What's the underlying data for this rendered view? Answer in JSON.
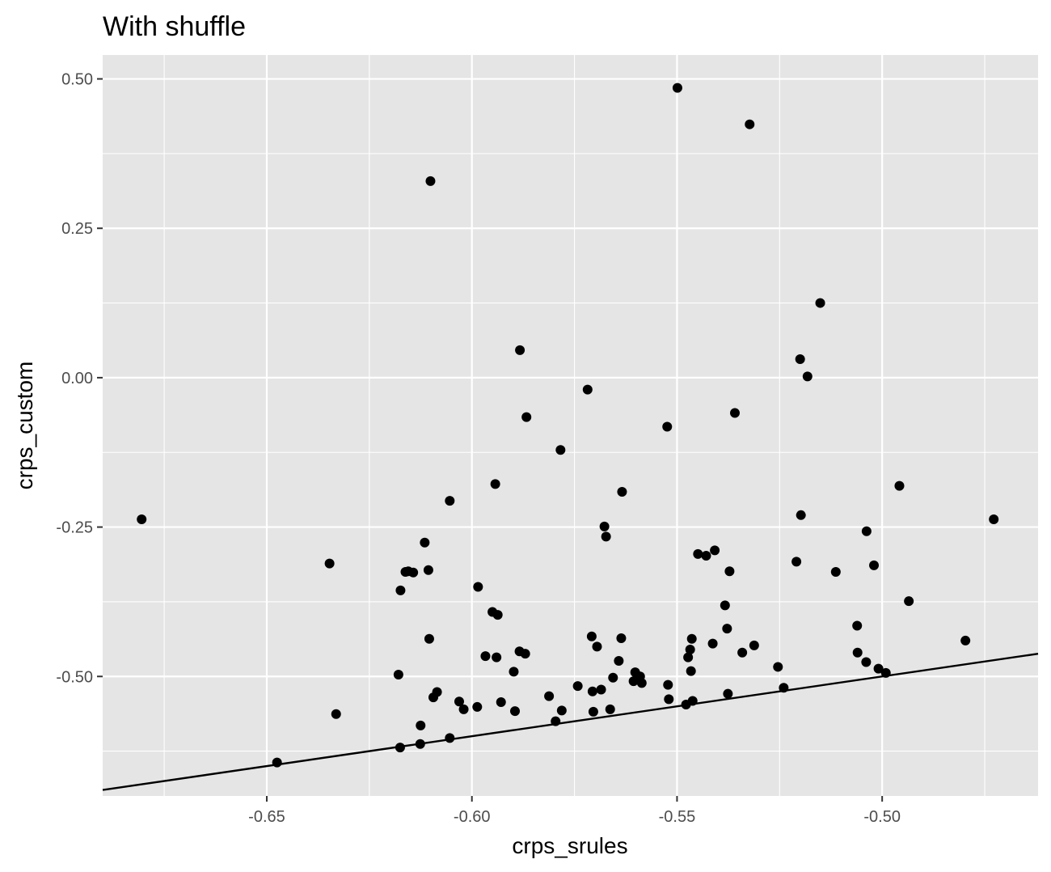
{
  "chart_data": {
    "type": "scatter",
    "title": "With shuffle",
    "xlabel": "crps_srules",
    "ylabel": "crps_custom",
    "xlim": [
      -0.69,
      -0.462
    ],
    "ylim": [
      -0.7,
      0.54
    ],
    "x_ticks": [
      -0.65,
      -0.6,
      -0.55,
      -0.5
    ],
    "x_tick_labels": [
      "-0.65",
      "-0.60",
      "-0.55",
      "-0.50"
    ],
    "y_ticks": [
      0.5,
      0.25,
      0.0,
      -0.25,
      -0.5
    ],
    "y_tick_labels": [
      "0.50",
      "0.25",
      "0.00",
      "-0.25",
      "-0.50"
    ],
    "grid": true,
    "reference_line": {
      "type": "identity",
      "intercept": 0,
      "slope": 1
    },
    "colors": {
      "panel": "#e5e5e5",
      "grid": "#ffffff",
      "points": "#000000",
      "line": "#000000"
    },
    "points": [
      {
        "x": -0.6805,
        "y": -0.237
      },
      {
        "x": -0.6475,
        "y": -0.644
      },
      {
        "x": -0.6347,
        "y": -0.311
      },
      {
        "x": -0.6331,
        "y": -0.563
      },
      {
        "x": -0.6179,
        "y": -0.497
      },
      {
        "x": -0.6174,
        "y": -0.356
      },
      {
        "x": -0.6175,
        "y": -0.619
      },
      {
        "x": -0.6162,
        "y": -0.325
      },
      {
        "x": -0.6155,
        "y": -0.324
      },
      {
        "x": -0.6143,
        "y": -0.326
      },
      {
        "x": -0.6125,
        "y": -0.582
      },
      {
        "x": -0.6126,
        "y": -0.613
      },
      {
        "x": -0.6115,
        "y": -0.276
      },
      {
        "x": -0.6106,
        "y": -0.322
      },
      {
        "x": -0.6104,
        "y": -0.437
      },
      {
        "x": -0.6101,
        "y": 0.329
      },
      {
        "x": -0.6094,
        "y": -0.535
      },
      {
        "x": -0.6085,
        "y": -0.526
      },
      {
        "x": -0.6054,
        "y": -0.206
      },
      {
        "x": -0.6054,
        "y": -0.603
      },
      {
        "x": -0.6031,
        "y": -0.542
      },
      {
        "x": -0.602,
        "y": -0.555
      },
      {
        "x": -0.5987,
        "y": -0.551
      },
      {
        "x": -0.5985,
        "y": -0.35
      },
      {
        "x": -0.5967,
        "y": -0.466
      },
      {
        "x": -0.595,
        "y": -0.392
      },
      {
        "x": -0.5943,
        "y": -0.178
      },
      {
        "x": -0.594,
        "y": -0.468
      },
      {
        "x": -0.5937,
        "y": -0.397
      },
      {
        "x": -0.5929,
        "y": -0.543
      },
      {
        "x": -0.5898,
        "y": -0.492
      },
      {
        "x": -0.5895,
        "y": -0.558
      },
      {
        "x": -0.5884,
        "y": -0.458
      },
      {
        "x": -0.5883,
        "y": 0.046
      },
      {
        "x": -0.587,
        "y": -0.462
      },
      {
        "x": -0.5867,
        "y": -0.066
      },
      {
        "x": -0.5812,
        "y": -0.533
      },
      {
        "x": -0.5796,
        "y": -0.575
      },
      {
        "x": -0.5784,
        "y": -0.121
      },
      {
        "x": -0.5781,
        "y": -0.557
      },
      {
        "x": -0.5742,
        "y": -0.516
      },
      {
        "x": -0.5718,
        "y": -0.02
      },
      {
        "x": -0.5708,
        "y": -0.433
      },
      {
        "x": -0.5706,
        "y": -0.525
      },
      {
        "x": -0.5704,
        "y": -0.559
      },
      {
        "x": -0.5695,
        "y": -0.45
      },
      {
        "x": -0.5685,
        "y": -0.522
      },
      {
        "x": -0.5677,
        "y": -0.249
      },
      {
        "x": -0.5673,
        "y": -0.266
      },
      {
        "x": -0.5663,
        "y": -0.555
      },
      {
        "x": -0.5656,
        "y": -0.502
      },
      {
        "x": -0.5642,
        "y": -0.474
      },
      {
        "x": -0.5636,
        "y": -0.436
      },
      {
        "x": -0.5634,
        "y": -0.191
      },
      {
        "x": -0.5606,
        "y": -0.508
      },
      {
        "x": -0.5602,
        "y": -0.493
      },
      {
        "x": -0.559,
        "y": -0.5
      },
      {
        "x": -0.5586,
        "y": -0.511
      },
      {
        "x": -0.5522,
        "y": -0.514
      },
      {
        "x": -0.5524,
        "y": -0.082
      },
      {
        "x": -0.552,
        "y": -0.538
      },
      {
        "x": -0.5499,
        "y": 0.485
      },
      {
        "x": -0.5478,
        "y": -0.547
      },
      {
        "x": -0.5473,
        "y": -0.468
      },
      {
        "x": -0.5468,
        "y": -0.455
      },
      {
        "x": -0.5466,
        "y": -0.491
      },
      {
        "x": -0.5464,
        "y": -0.437
      },
      {
        "x": -0.5462,
        "y": -0.541
      },
      {
        "x": -0.5449,
        "y": -0.295
      },
      {
        "x": -0.5429,
        "y": -0.298
      },
      {
        "x": -0.5413,
        "y": -0.445
      },
      {
        "x": -0.5408,
        "y": -0.289
      },
      {
        "x": -0.5383,
        "y": -0.381
      },
      {
        "x": -0.5378,
        "y": -0.42
      },
      {
        "x": -0.5376,
        "y": -0.529
      },
      {
        "x": -0.5372,
        "y": -0.324
      },
      {
        "x": -0.5359,
        "y": -0.059
      },
      {
        "x": -0.5341,
        "y": -0.46
      },
      {
        "x": -0.5323,
        "y": 0.424
      },
      {
        "x": -0.5312,
        "y": -0.448
      },
      {
        "x": -0.5254,
        "y": -0.484
      },
      {
        "x": -0.524,
        "y": -0.519
      },
      {
        "x": -0.5209,
        "y": -0.308
      },
      {
        "x": -0.52,
        "y": 0.031
      },
      {
        "x": -0.5198,
        "y": -0.23
      },
      {
        "x": -0.5182,
        "y": 0.002
      },
      {
        "x": -0.5151,
        "y": 0.125
      },
      {
        "x": -0.5113,
        "y": -0.325
      },
      {
        "x": -0.5061,
        "y": -0.415
      },
      {
        "x": -0.506,
        "y": -0.46
      },
      {
        "x": -0.5039,
        "y": -0.476
      },
      {
        "x": -0.5038,
        "y": -0.257
      },
      {
        "x": -0.502,
        "y": -0.314
      },
      {
        "x": -0.5009,
        "y": -0.487
      },
      {
        "x": -0.4991,
        "y": -0.494
      },
      {
        "x": -0.4958,
        "y": -0.181
      },
      {
        "x": -0.4935,
        "y": -0.374
      },
      {
        "x": -0.4797,
        "y": -0.44
      },
      {
        "x": -0.4728,
        "y": -0.237
      }
    ]
  }
}
